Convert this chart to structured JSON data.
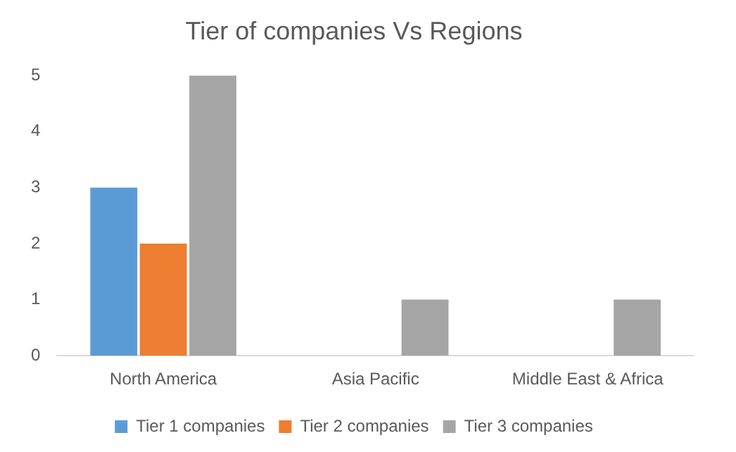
{
  "chart_data": {
    "type": "bar",
    "title": "Tier of companies Vs Regions",
    "categories": [
      "North America",
      "Asia Pacific",
      "Middle East & Africa"
    ],
    "series": [
      {
        "name": "Tier 1 companies",
        "color": "#5b9bd5",
        "values": [
          3,
          0,
          0
        ]
      },
      {
        "name": "Tier 2 companies",
        "color": "#ed7d31",
        "values": [
          2,
          0,
          0
        ]
      },
      {
        "name": "Tier 3 companies",
        "color": "#a5a5a5",
        "values": [
          5,
          1,
          1
        ]
      }
    ],
    "ylim": [
      0,
      5
    ],
    "yticks": [
      0,
      1,
      2,
      3,
      4,
      5
    ],
    "grid": false,
    "legend": "bottom"
  }
}
